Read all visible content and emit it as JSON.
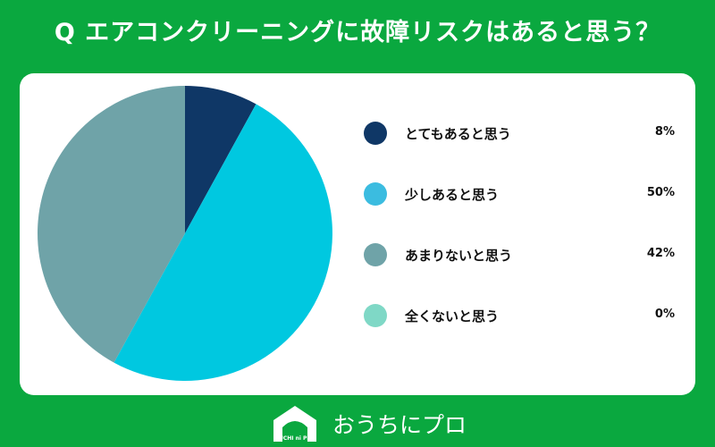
{
  "chart_data": {
    "type": "pie",
    "title": "Q エアコンクリーニングに故障リスクはあると思う？",
    "legend_position": "right",
    "slices": [
      {
        "label": "とてもあると思う",
        "value": 8,
        "value_label": "8%",
        "color": "#0f3766"
      },
      {
        "label": "少しあると思う",
        "value": 50,
        "value_label": "50%",
        "color": "#00c8e0"
      },
      {
        "label": "あまりないと思う",
        "value": 42,
        "value_label": "42%",
        "color": "#6fa3a8"
      },
      {
        "label": "全くないと思う",
        "value": 0,
        "value_label": "0%",
        "color": "#7fd8c6"
      }
    ],
    "legend_swatch_colors": [
      "#0f3766",
      "#3bbce0",
      "#6fa3a8",
      "#7fd8c6"
    ]
  },
  "footer": {
    "logo_mark_text": "OUCHI ni PRO",
    "logo_text": "おうちにプロ"
  },
  "colors": {
    "background": "#0aa83f",
    "card": "#ffffff"
  }
}
